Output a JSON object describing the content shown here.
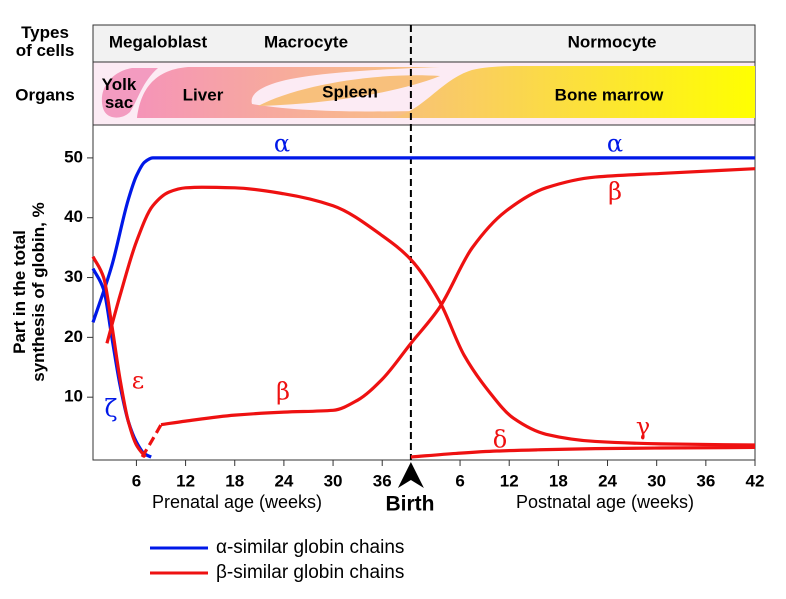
{
  "chart_data": {
    "type": "line",
    "top_panel": {
      "cell_types_title": [
        "Types",
        "of cells"
      ],
      "organs_title": "Organs",
      "cell_types": [
        "Megaloblast",
        "Macrocyte",
        "Normocyte"
      ],
      "organs": [
        [
          "Yolk",
          "sac"
        ],
        "Liver",
        "Spleen",
        "Bone marrow"
      ]
    },
    "ylabel": [
      "Part in the total",
      "synthesis of globin, %"
    ],
    "xlabel_prenatal": "Prenatal age (weeks)",
    "xlabel_postnatal": "Postnatal age (weeks)",
    "birth_label": "Birth",
    "birth_x": 39.5,
    "xlim": [
      0.7,
      81.5
    ],
    "ylim": [
      0,
      55.5
    ],
    "yticks": [
      10,
      20,
      30,
      40,
      50
    ],
    "xticks": [
      6,
      12,
      18,
      24,
      30,
      36,
      {
        "value": 45.5,
        "label": "6"
      },
      {
        "value": 51.5,
        "label": "12"
      },
      {
        "value": 57.5,
        "label": "18"
      },
      {
        "value": 63.5,
        "label": "24"
      },
      {
        "value": 69.5,
        "label": "30"
      },
      {
        "value": 75.5,
        "label": "36"
      },
      {
        "value": 81.5,
        "label": "42"
      }
    ],
    "series": [
      {
        "labels": [
          "α",
          "α"
        ],
        "color": "#0018e8",
        "linestyle": "solid",
        "x": [
          0.7,
          3,
          5,
          6,
          7,
          8,
          9.5,
          12,
          20,
          39.5,
          60,
          81.5
        ],
        "values": [
          22.5,
          32,
          43,
          47,
          49.3,
          50,
          50,
          50,
          50,
          50,
          50,
          50
        ]
      },
      {
        "labels": [
          "ζ"
        ],
        "color": "#0018e8",
        "linestyle": "solid",
        "x": [
          0.7,
          2,
          3,
          4,
          5,
          6,
          7,
          7.8
        ],
        "values": [
          31.5,
          28,
          20,
          12,
          6,
          2.5,
          0.5,
          0
        ]
      },
      {
        "labels": [
          "ε"
        ],
        "color": "#ee1111",
        "linestyle": "solid",
        "x": [
          0.7,
          2,
          3,
          4,
          5,
          6,
          7.1
        ],
        "values": [
          33.5,
          30,
          22,
          13,
          6,
          2,
          0
        ]
      },
      {
        "labels": [
          "γ"
        ],
        "color": "#ee1111",
        "linestyle": "solid",
        "x": [
          2.4,
          4,
          6,
          8,
          10,
          12,
          14,
          18,
          24,
          30,
          36,
          39.5,
          43,
          46,
          49,
          52,
          56,
          62,
          70,
          81.5
        ],
        "values": [
          19,
          27,
          36,
          42,
          44.3,
          45,
          45.1,
          45,
          44,
          42,
          37,
          33,
          26,
          17,
          11,
          6.5,
          3.8,
          2.6,
          2.2,
          2
        ]
      },
      {
        "labels": [
          "β",
          "β"
        ],
        "color": "#ee1111",
        "linestyle": "solid",
        "x": [
          9,
          12,
          18,
          24,
          30,
          33,
          36,
          39.5,
          43,
          47,
          51,
          56,
          62,
          70,
          81.5
        ],
        "values": [
          5.4,
          6,
          7,
          7.5,
          7.8,
          9.5,
          13,
          19,
          25,
          35,
          41,
          45,
          46.8,
          47.4,
          48.2
        ]
      },
      {
        "color": "#ee1111",
        "linestyle": "dashed",
        "x": [
          6.7,
          8,
          9
        ],
        "values": [
          0,
          3,
          5.4
        ]
      },
      {
        "labels": [
          "δ"
        ],
        "color": "#ee1111",
        "linestyle": "solid",
        "x": [
          39.5,
          45,
          50,
          55,
          62,
          70,
          81.5
        ],
        "values": [
          0,
          0.6,
          1,
          1.2,
          1.4,
          1.5,
          1.6
        ]
      }
    ],
    "legend": [
      {
        "label": "α-similar globin chains",
        "color": "#0018e8"
      },
      {
        "label": "β-similar globin chains",
        "color": "#ee1111"
      }
    ]
  }
}
